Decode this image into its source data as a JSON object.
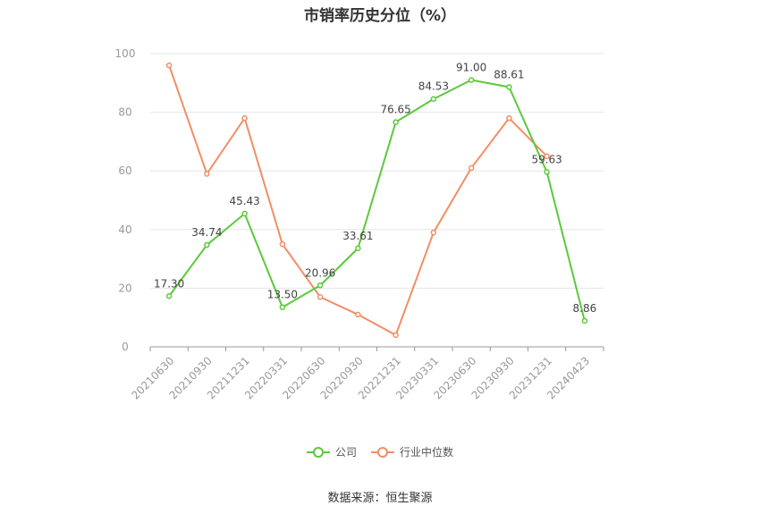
{
  "chart_data": {
    "type": "line",
    "title": "市销率历史分位（%）",
    "categories": [
      "20210630",
      "20210930",
      "20211231",
      "20220331",
      "20220630",
      "20220930",
      "20221231",
      "20230331",
      "20230630",
      "20230930",
      "20231231",
      "20240423"
    ],
    "ylim": [
      0,
      100
    ],
    "yticks": [
      0,
      20,
      40,
      60,
      80,
      100
    ],
    "grid": true,
    "legend_position": "bottom",
    "series": [
      {
        "name": "公司",
        "color": "#5cc93a",
        "values": [
          17.3,
          34.74,
          45.43,
          13.5,
          20.96,
          33.61,
          76.65,
          84.53,
          91.0,
          88.61,
          59.63,
          8.86
        ],
        "labels": [
          "17.30",
          "34.74",
          "45.43",
          "13.50",
          "20.96",
          "33.61",
          "76.65",
          "84.53",
          "91.00",
          "88.61",
          "59.63",
          "8.86"
        ]
      },
      {
        "name": "行业中位数",
        "color": "#f28e65",
        "values": [
          96,
          59,
          78,
          35,
          17,
          11,
          4,
          39,
          61,
          78,
          65,
          null
        ]
      }
    ]
  },
  "legend": {
    "company": "公司",
    "industry": "行业中位数"
  },
  "source": "数据来源：恒生聚源"
}
